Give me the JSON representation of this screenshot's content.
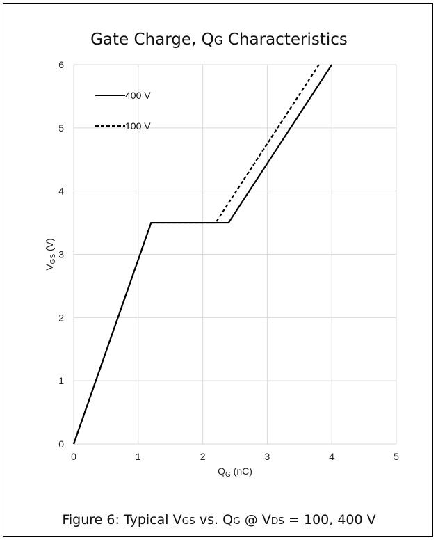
{
  "chart_data": {
    "type": "line",
    "title": {
      "main": "Gate Charge, Q",
      "sub": "G",
      "rest": " Characteristics"
    },
    "xlabel": {
      "main": "Q",
      "sub": "G",
      "rest": " (nC)"
    },
    "ylabel": {
      "main": "V",
      "sub": "GS",
      "rest": " (V)"
    },
    "xlim": [
      0,
      5
    ],
    "ylim": [
      0,
      6
    ],
    "xticks": [
      "0",
      "1",
      "2",
      "3",
      "4",
      "5"
    ],
    "yticks": [
      "0",
      "1",
      "2",
      "3",
      "4",
      "5",
      "6"
    ],
    "grid": true,
    "legend_position": "top-left",
    "series": [
      {
        "name": "400 V",
        "style": "solid",
        "color": "#000000",
        "x": [
          0,
          1.2,
          2.4,
          4.0
        ],
        "y": [
          0,
          3.5,
          3.5,
          6.0
        ]
      },
      {
        "name": "100 V",
        "style": "dashed",
        "color": "#000000",
        "x": [
          0,
          1.2,
          2.2,
          3.8
        ],
        "y": [
          0,
          3.5,
          3.5,
          6.0
        ]
      }
    ]
  },
  "caption": {
    "p1": "Figure 6: Typical V",
    "s1": "GS",
    "p2": " vs. Q",
    "s2": "G",
    "p3": " @ V",
    "s3": "DS",
    "p4": " = 100, 400 V"
  },
  "colors": {
    "grid": "#d9d9d9",
    "line": "#000000",
    "border": "#000000"
  }
}
